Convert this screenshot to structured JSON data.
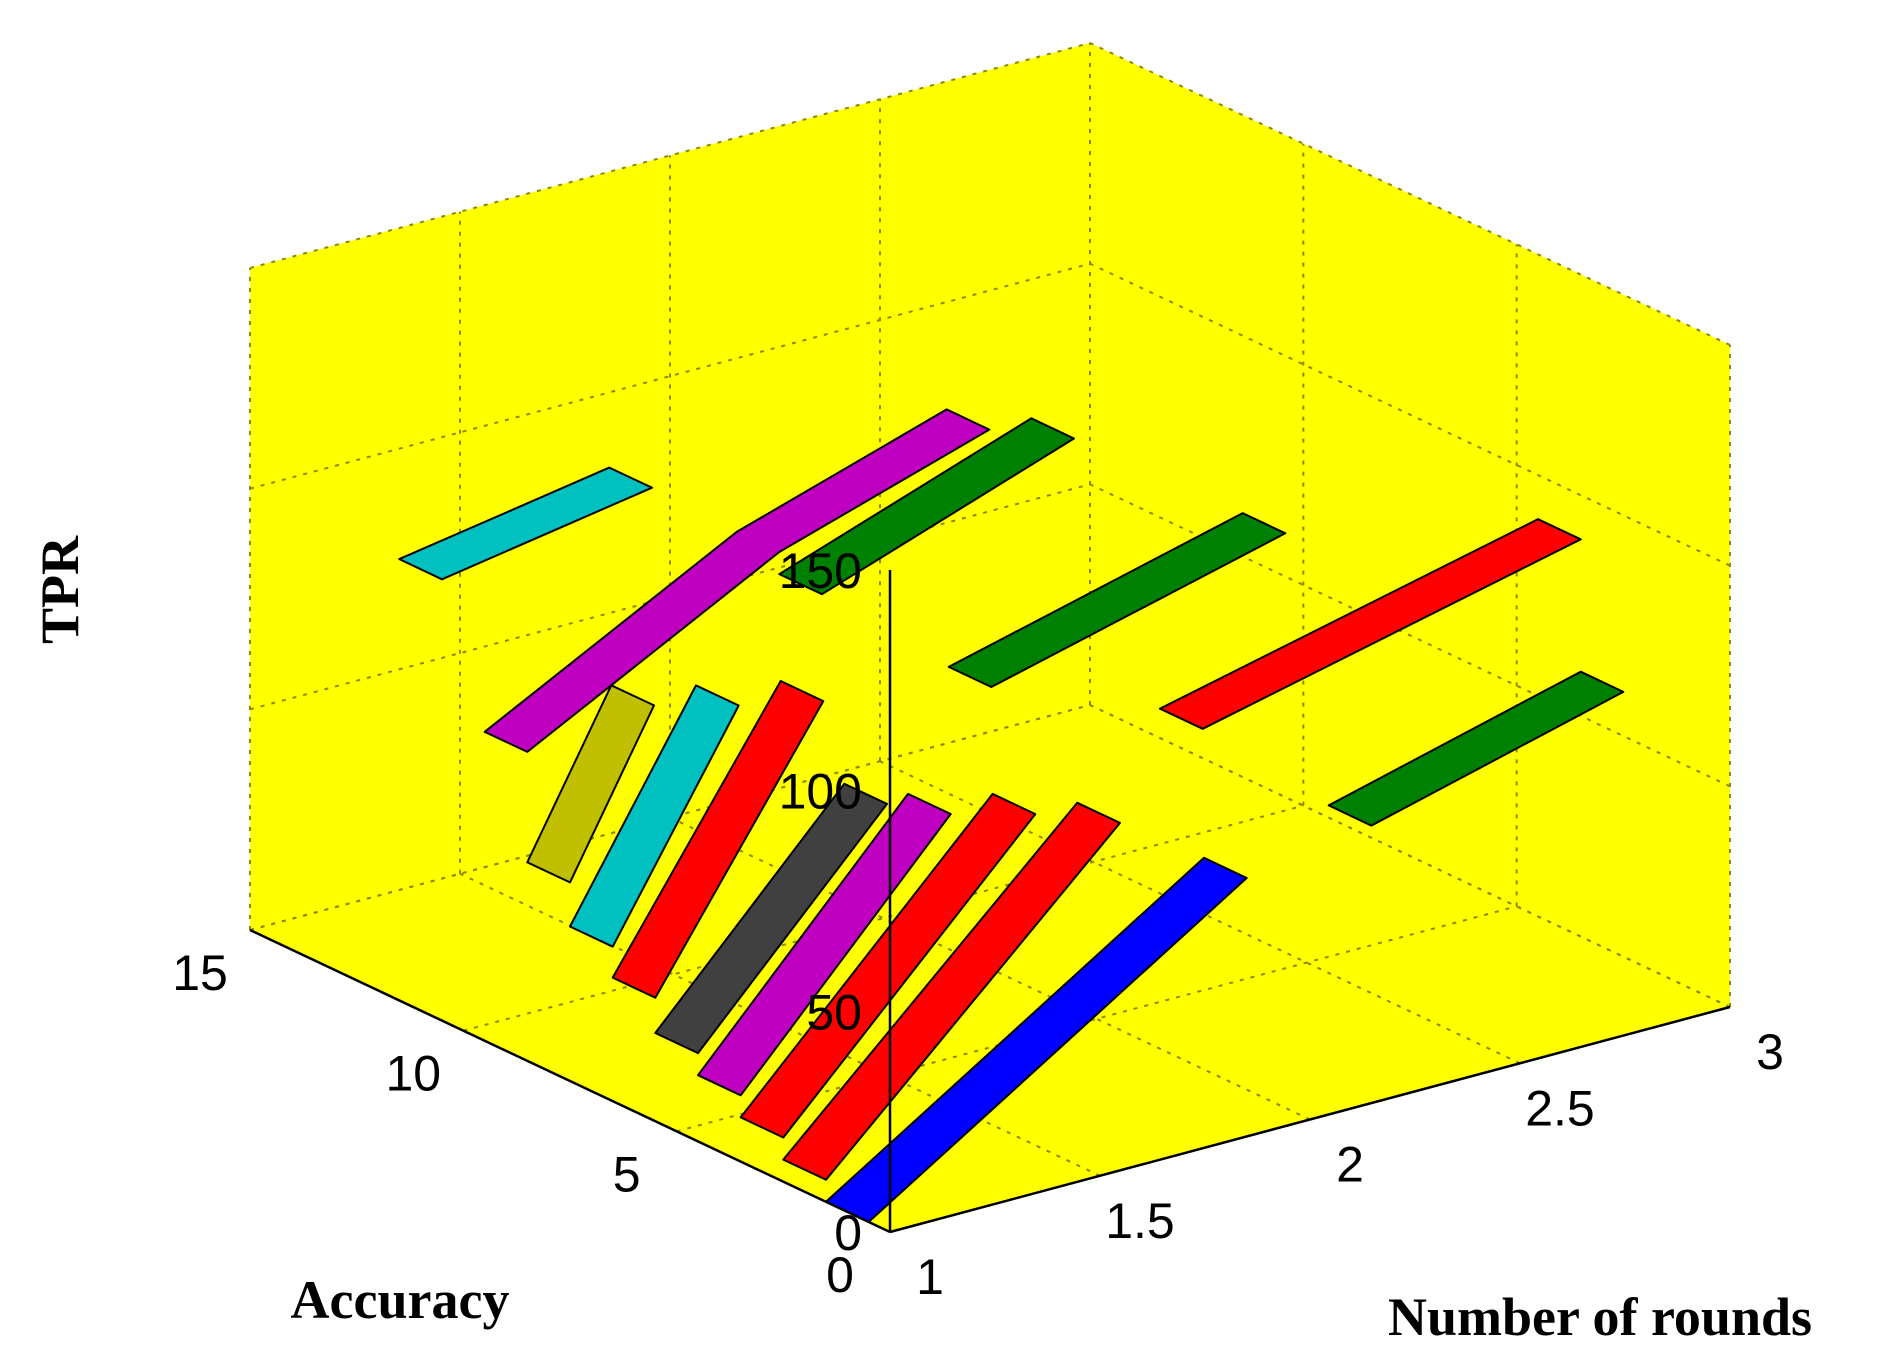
{
  "chart_data": {
    "type": "surface",
    "title": "",
    "xlabel": "Number of rounds",
    "ylabel": "Accuracy",
    "zlabel": "TPR",
    "xlim": [
      1,
      3
    ],
    "ylim": [
      0,
      15
    ],
    "zlim": [
      0,
      150
    ],
    "x_ticks": [
      "1",
      "1.5",
      "2",
      "2.5",
      "3"
    ],
    "y_ticks": [
      "0",
      "5",
      "10",
      "15"
    ],
    "z_ticks": [
      "0",
      "50",
      "100",
      "150"
    ],
    "grid": true,
    "colors": {
      "background": "#ffff00",
      "blue": "#0000ff",
      "red": "#ff0000",
      "magenta": "#c000c0",
      "dark_gray": "#404040",
      "cyan": "#00c0c0",
      "olive": "#c0c000",
      "green": "#008000"
    },
    "series": [
      {
        "color": "#0000ff",
        "values": [
          {
            "x": 1,
            "y": 1,
            "z": 0
          },
          {
            "x": 1.9,
            "y": 1,
            "z": 55
          }
        ]
      },
      {
        "color": "#ff0000",
        "values": [
          {
            "x": 1,
            "y": 2,
            "z": 5
          },
          {
            "x": 1.7,
            "y": 2,
            "z": 68
          }
        ]
      },
      {
        "color": "#ff0000",
        "values": [
          {
            "x": 1,
            "y": 3,
            "z": 10
          },
          {
            "x": 1.6,
            "y": 3,
            "z": 68
          }
        ]
      },
      {
        "color": "#c000c0",
        "values": [
          {
            "x": 1,
            "y": 4,
            "z": 15
          },
          {
            "x": 1.5,
            "y": 4,
            "z": 66
          }
        ]
      },
      {
        "color": "#404040",
        "values": [
          {
            "x": 1,
            "y": 5,
            "z": 20
          },
          {
            "x": 1.45,
            "y": 5,
            "z": 65
          }
        ]
      },
      {
        "color": "#ff0000",
        "values": [
          {
            "x": 1,
            "y": 6,
            "z": 28
          },
          {
            "x": 1.4,
            "y": 6,
            "z": 85
          }
        ]
      },
      {
        "color": "#00c0c0",
        "values": [
          {
            "x": 1,
            "y": 7,
            "z": 35
          },
          {
            "x": 1.3,
            "y": 7,
            "z": 82
          }
        ]
      },
      {
        "color": "#c0c000",
        "values": [
          {
            "x": 1,
            "y": 8,
            "z": 45
          },
          {
            "x": 1.2,
            "y": 8,
            "z": 80
          }
        ]
      },
      {
        "color": "#c000c0",
        "values": [
          {
            "x": 1,
            "y": 9,
            "z": 70
          },
          {
            "x": 1.6,
            "y": 9,
            "z": 100
          },
          {
            "x": 2.1,
            "y": 9,
            "z": 115
          }
        ]
      },
      {
        "color": "#00c0c0",
        "values": [
          {
            "x": 1,
            "y": 11,
            "z": 100
          },
          {
            "x": 1.5,
            "y": 11,
            "z": 108
          }
        ]
      },
      {
        "color": "#008000",
        "values": [
          {
            "x": 1.6,
            "y": 8,
            "z": 95
          },
          {
            "x": 2.2,
            "y": 8,
            "z": 115
          }
        ]
      },
      {
        "color": "#008000",
        "values": [
          {
            "x": 1.8,
            "y": 6,
            "z": 78
          },
          {
            "x": 2.5,
            "y": 6,
            "z": 95
          }
        ]
      },
      {
        "color": "#ff0000",
        "values": [
          {
            "x": 2.1,
            "y": 4,
            "z": 70
          },
          {
            "x": 3,
            "y": 4,
            "z": 90
          }
        ]
      },
      {
        "color": "#008000",
        "values": [
          {
            "x": 2.4,
            "y": 3,
            "z": 45
          },
          {
            "x": 3,
            "y": 3,
            "z": 60
          }
        ]
      }
    ]
  }
}
